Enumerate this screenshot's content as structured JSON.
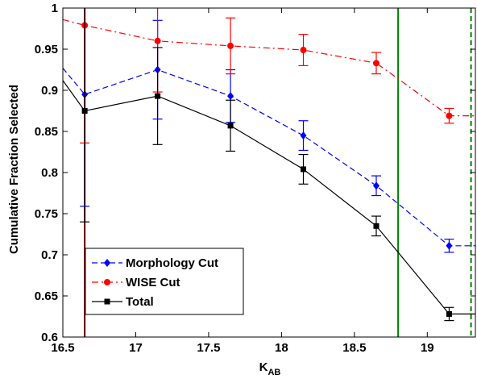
{
  "chart_data": {
    "type": "line",
    "title": "",
    "xlabel": "K",
    "xlabel_sub": "AB",
    "ylabel": "Cumulative Fraction Selected",
    "xlim": [
      16.5,
      19.33
    ],
    "ylim": [
      0.6,
      1.0
    ],
    "xticks": [
      16.5,
      17,
      17.5,
      18,
      18.5,
      19
    ],
    "xtick_labels": [
      "16.5",
      "17",
      "17.5",
      "18",
      "18.5",
      "19"
    ],
    "yticks": [
      0.6,
      0.65,
      0.7,
      0.75,
      0.8,
      0.85,
      0.9,
      0.95,
      1.0
    ],
    "ytick_labels": [
      "0.6",
      "0.65",
      "0.7",
      "0.75",
      "0.8",
      "0.85",
      "0.9",
      "0.95",
      "1"
    ],
    "grid": false,
    "legend_position": "bottom-left",
    "series": [
      {
        "name": "Morphology Cut",
        "color": "#0000ff",
        "line_style": "dashed",
        "marker": "diamond",
        "x": [
          16.65,
          17.15,
          17.65,
          18.15,
          18.65,
          19.15
        ],
        "y": [
          0.895,
          0.925,
          0.893,
          0.845,
          0.784,
          0.711
        ],
        "yerr": [
          0.136,
          0.06,
          0.032,
          0.018,
          0.012,
          0.008
        ],
        "line_extension": [
          [
            16.5,
            0.927
          ],
          [
            16.65,
            0.895
          ],
          [
            17.15,
            0.925
          ],
          [
            17.65,
            0.893
          ],
          [
            18.15,
            0.845
          ],
          [
            18.65,
            0.784
          ],
          [
            19.15,
            0.711
          ],
          [
            19.33,
            0.711
          ]
        ]
      },
      {
        "name": "WISE Cut",
        "color": "#ff0000",
        "line_style": "dashdot",
        "marker": "circle",
        "x": [
          16.65,
          17.15,
          17.65,
          18.15,
          18.65,
          19.15
        ],
        "y": [
          0.979,
          0.96,
          0.954,
          0.949,
          0.933,
          0.869
        ],
        "yerr": [
          0.143,
          0.062,
          0.034,
          0.019,
          0.013,
          0.009
        ],
        "line_extension": [
          [
            16.5,
            0.986
          ],
          [
            16.65,
            0.979
          ],
          [
            17.15,
            0.96
          ],
          [
            17.65,
            0.954
          ],
          [
            18.15,
            0.949
          ],
          [
            18.65,
            0.933
          ],
          [
            18.8,
            0.914
          ],
          [
            19.15,
            0.869
          ],
          [
            19.33,
            0.869
          ]
        ]
      },
      {
        "name": "Total",
        "color": "#000000",
        "line_style": "solid",
        "marker": "square",
        "x": [
          16.65,
          17.15,
          17.65,
          18.15,
          18.65,
          19.15
        ],
        "y": [
          0.875,
          0.893,
          0.857,
          0.804,
          0.735,
          0.628
        ],
        "yerr": [
          0.135,
          0.059,
          0.031,
          0.018,
          0.012,
          0.008
        ],
        "line_extension": [
          [
            16.5,
            0.912
          ],
          [
            16.65,
            0.875
          ],
          [
            17.15,
            0.893
          ],
          [
            17.65,
            0.857
          ],
          [
            18.15,
            0.804
          ],
          [
            18.65,
            0.735
          ],
          [
            18.8,
            0.703
          ],
          [
            19.15,
            0.628
          ],
          [
            19.33,
            0.628
          ]
        ]
      }
    ],
    "vertical_lines": [
      {
        "x": 16.65,
        "color": "#600000",
        "style": "solid"
      },
      {
        "x": 18.8,
        "color": "#008000",
        "style": "solid"
      },
      {
        "x": 19.3,
        "color": "#008000",
        "style": "dashed"
      }
    ]
  }
}
